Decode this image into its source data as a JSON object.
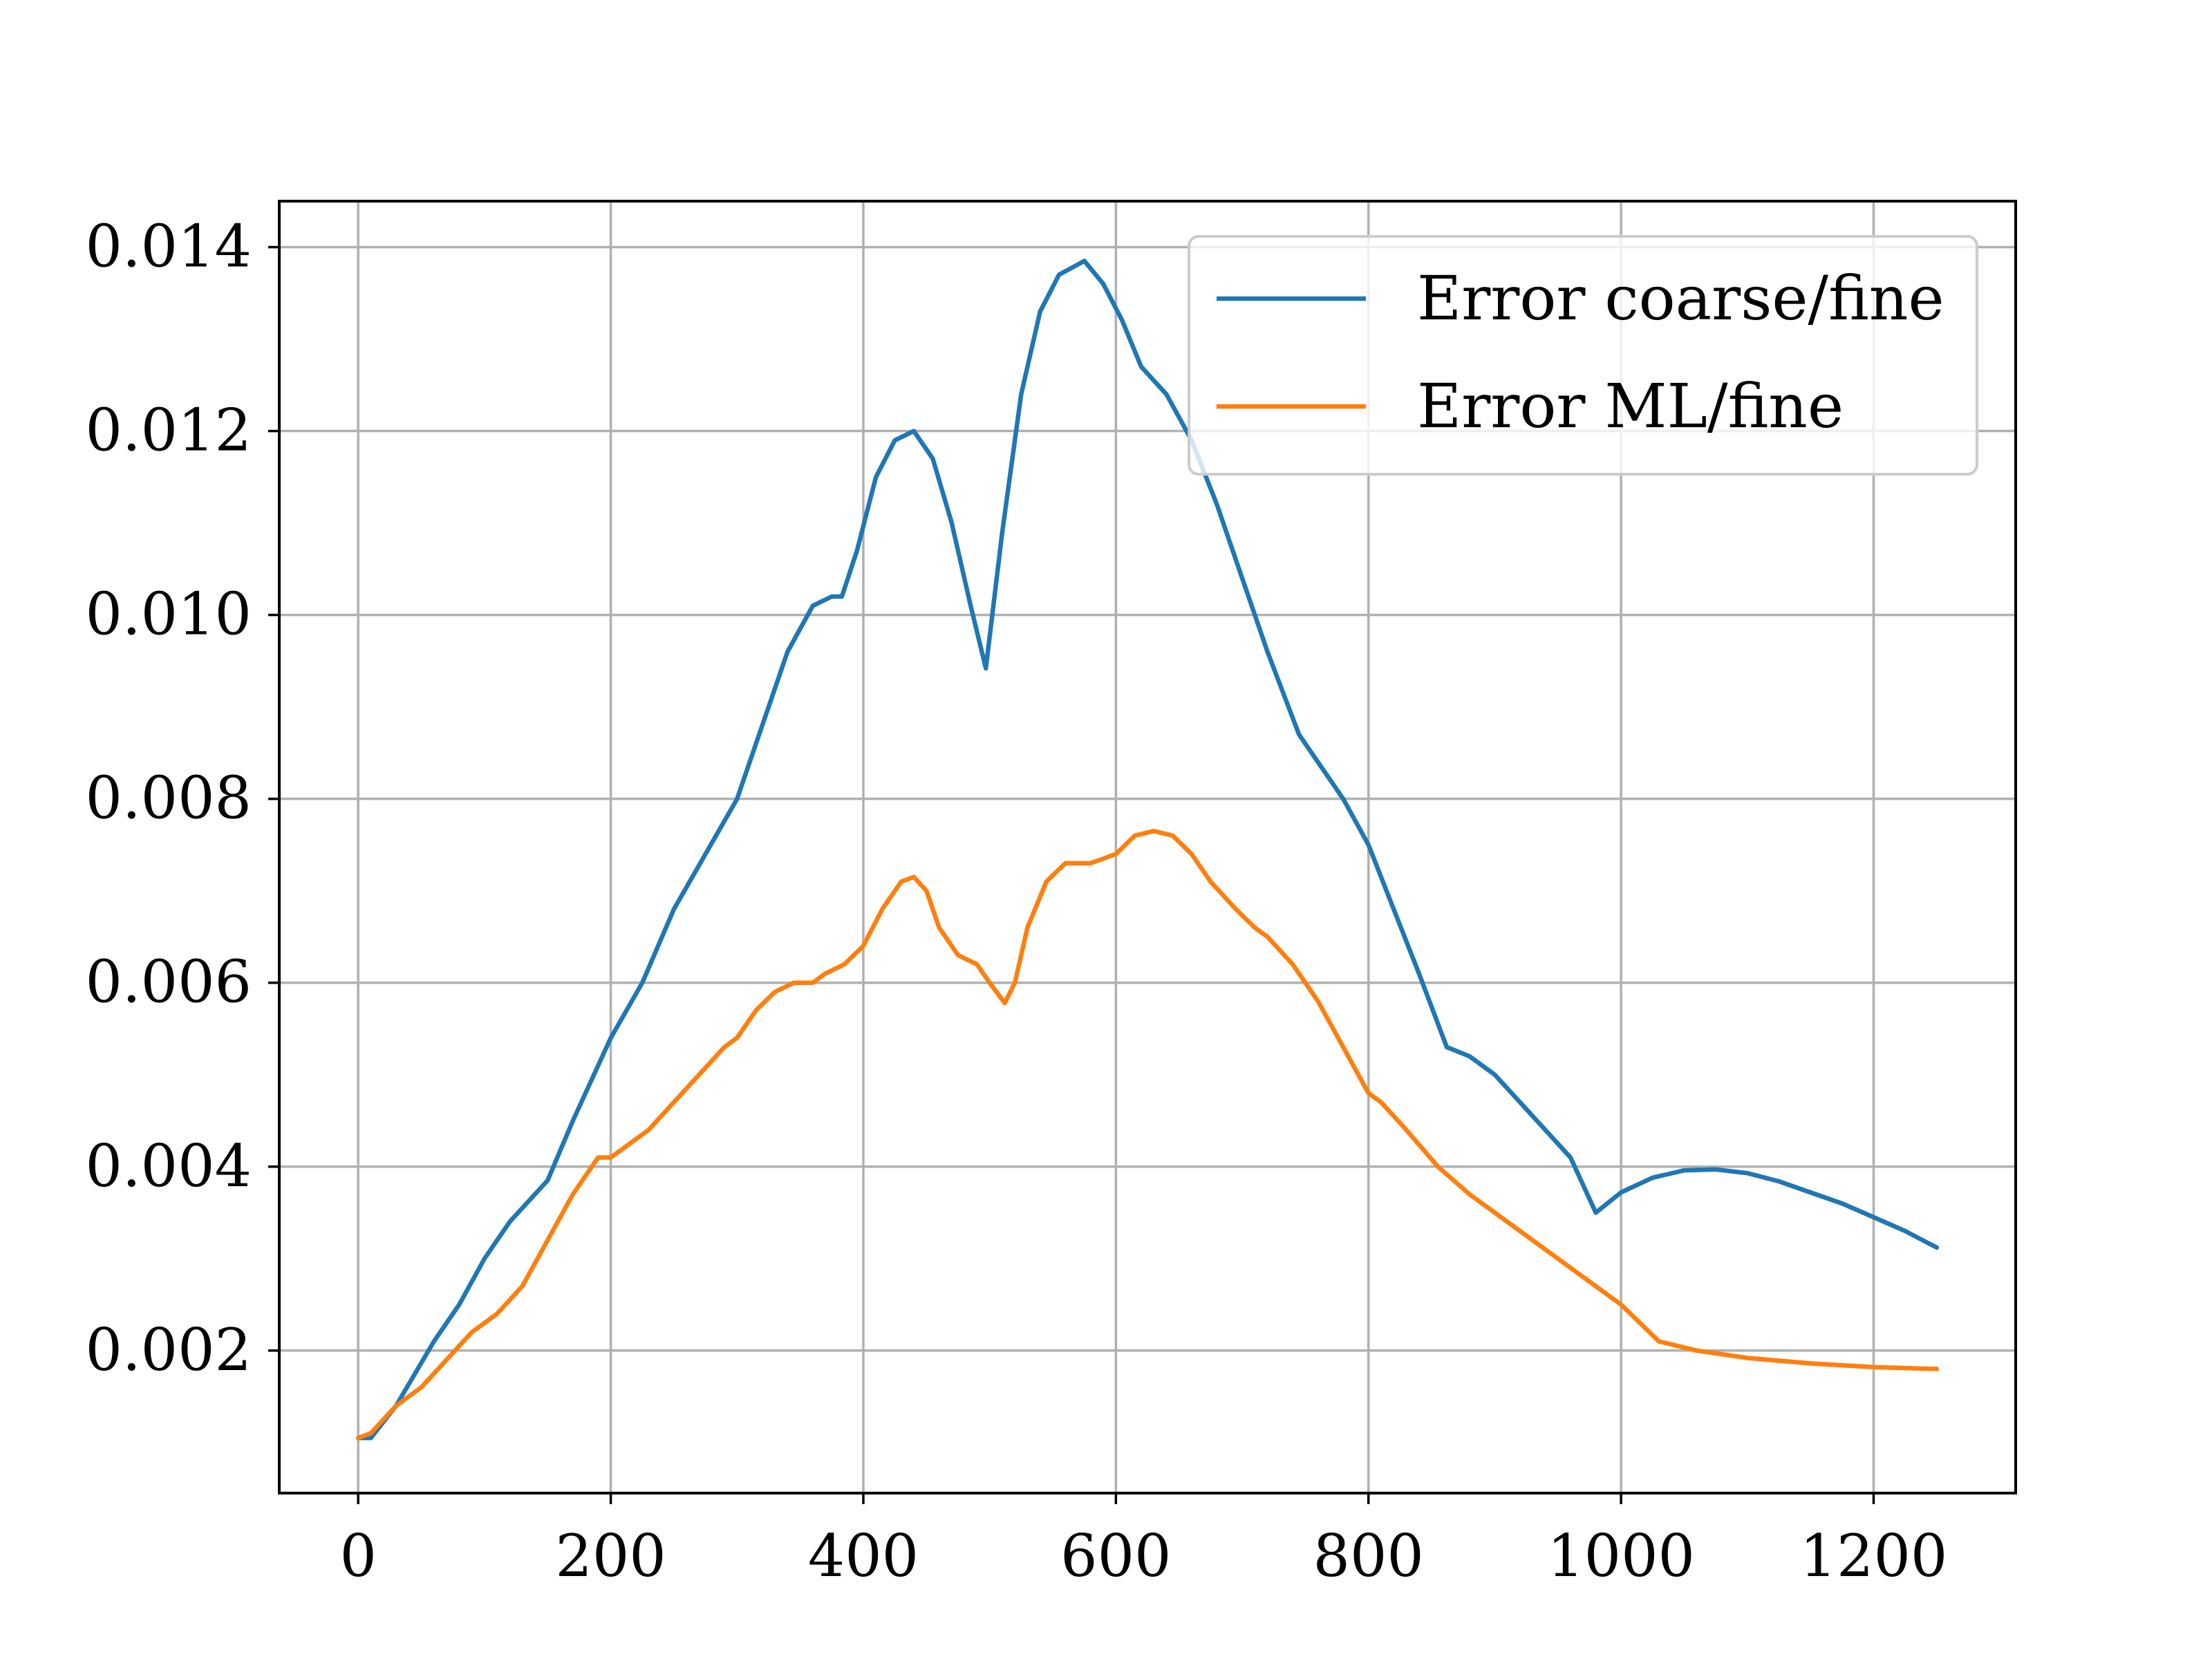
{
  "chart_data": {
    "type": "line",
    "title": "",
    "xlabel": "",
    "ylabel": "",
    "xlim": [
      -62.5,
      1312.5
    ],
    "ylim": [
      0.00045,
      0.0145
    ],
    "xticks": [
      0,
      200,
      400,
      600,
      800,
      1000,
      1200
    ],
    "xtick_labels": [
      "0",
      "200",
      "400",
      "600",
      "800",
      "1000",
      "1200"
    ],
    "yticks": [
      0.002,
      0.004,
      0.006,
      0.008,
      0.01,
      0.012,
      0.014
    ],
    "ytick_labels": [
      "0.002",
      "0.004",
      "0.006",
      "0.008",
      "0.010",
      "0.012",
      "0.014"
    ],
    "grid": true,
    "legend_position": "top-right",
    "series": [
      {
        "name": "Error coarse/fine",
        "color": "#1f77b4",
        "x": [
          0,
          10,
          30,
          60,
          80,
          100,
          120,
          140,
          150,
          170,
          200,
          225,
          250,
          275,
          300,
          320,
          340,
          360,
          375,
          383,
          395,
          410,
          425,
          440,
          455,
          470,
          485,
          497,
          510,
          525,
          540,
          555,
          575,
          590,
          605,
          620,
          640,
          660,
          680,
          700,
          720,
          745,
          760,
          780,
          800,
          820,
          840,
          862,
          880,
          900,
          920,
          940,
          960,
          980,
          1000,
          1025,
          1050,
          1075,
          1100,
          1125,
          1150,
          1175,
          1200,
          1225,
          1250
        ],
        "y": [
          0.00105,
          0.00105,
          0.0014,
          0.0021,
          0.0025,
          0.003,
          0.0034,
          0.0037,
          0.00385,
          0.0045,
          0.0054,
          0.006,
          0.0068,
          0.0074,
          0.008,
          0.0088,
          0.0096,
          0.0101,
          0.0102,
          0.0102,
          0.0107,
          0.0115,
          0.0119,
          0.012,
          0.0117,
          0.011,
          0.0101,
          0.00942,
          0.0109,
          0.0124,
          0.0133,
          0.0137,
          0.01385,
          0.0136,
          0.0132,
          0.0127,
          0.0124,
          0.0119,
          0.0112,
          0.0104,
          0.0096,
          0.0087,
          0.0084,
          0.008,
          0.0075,
          0.0068,
          0.0061,
          0.0053,
          0.0052,
          0.005,
          0.0047,
          0.0044,
          0.0041,
          0.0035,
          0.00372,
          0.00388,
          0.00396,
          0.00397,
          0.00393,
          0.00384,
          0.00372,
          0.0036,
          0.00345,
          0.0033,
          0.00312
        ]
      },
      {
        "name": "Error ML/fine",
        "color": "#ff7f0e",
        "x": [
          0,
          10,
          30,
          50,
          70,
          90,
          110,
          130,
          150,
          170,
          190,
          200,
          210,
          230,
          250,
          270,
          290,
          300,
          315,
          330,
          345,
          360,
          370,
          385,
          400,
          415,
          430,
          440,
          450,
          460,
          475,
          490,
          500,
          512,
          520,
          530,
          545,
          560,
          575,
          580,
          600,
          615,
          630,
          645,
          660,
          675,
          695,
          710,
          720,
          740,
          760,
          780,
          800,
          810,
          830,
          855,
          880,
          910,
          940,
          970,
          1000,
          1030,
          1060,
          1100,
          1150,
          1200,
          1250
        ],
        "y": [
          0.00105,
          0.0011,
          0.0014,
          0.0016,
          0.0019,
          0.0022,
          0.0024,
          0.0027,
          0.0032,
          0.0037,
          0.0041,
          0.0041,
          0.0042,
          0.0044,
          0.0047,
          0.005,
          0.0053,
          0.0054,
          0.0057,
          0.0059,
          0.006,
          0.006,
          0.0061,
          0.0062,
          0.0064,
          0.0068,
          0.0071,
          0.00715,
          0.007,
          0.0066,
          0.0063,
          0.0062,
          0.006,
          0.00578,
          0.006,
          0.0066,
          0.0071,
          0.0073,
          0.0073,
          0.0073,
          0.0074,
          0.0076,
          0.00765,
          0.0076,
          0.0074,
          0.0071,
          0.0068,
          0.0066,
          0.0065,
          0.0062,
          0.0058,
          0.0053,
          0.0048,
          0.0047,
          0.0044,
          0.004,
          0.0037,
          0.0034,
          0.0031,
          0.0028,
          0.0025,
          0.0021,
          0.002,
          0.00192,
          0.00186,
          0.00182,
          0.0018
        ]
      }
    ]
  }
}
